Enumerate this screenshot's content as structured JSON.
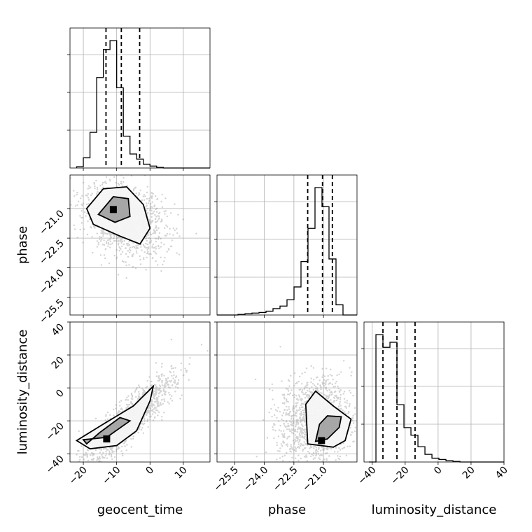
{
  "chart_data": {
    "type": "corner",
    "grid": true,
    "parameters": [
      {
        "name": "geocent_time",
        "range": [
          -24,
          18
        ],
        "ticks": [
          -20,
          -10,
          0,
          10
        ],
        "tick_labels": [
          "−20",
          "−10",
          "0",
          "10"
        ],
        "quantiles": [
          -13.2,
          -8.6,
          -3.1
        ],
        "hist_bin_start": -22,
        "hist_bin_width": 2,
        "hist_counts": [
          0.01,
          0.08,
          0.28,
          0.71,
          0.93,
          1.0,
          0.63,
          0.25,
          0.11,
          0.07,
          0.03,
          0.015,
          0.005,
          0.0,
          0.0,
          0.0,
          0.0,
          0.0,
          0.0,
          0.0
        ]
      },
      {
        "name": "phase",
        "range": [
          -26.4,
          -19.3
        ],
        "ticks": [
          -25.5,
          -24.0,
          -22.5,
          -21.0
        ],
        "tick_labels": [
          "−25.5",
          "−24.0",
          "−22.5",
          "−21.0"
        ],
        "quantiles": [
          -21.8,
          -21.05,
          -20.55
        ],
        "hist_bin_start": -26.4,
        "hist_bin_width": 0.355,
        "hist_counts": [
          0.0,
          0.0,
          0.0,
          0.005,
          0.01,
          0.015,
          0.02,
          0.03,
          0.05,
          0.07,
          0.12,
          0.22,
          0.42,
          0.68,
          1.0,
          0.85,
          0.44,
          0.08,
          0.0,
          0.0
        ]
      },
      {
        "name": "luminosity_distance",
        "range": [
          -45,
          40
        ],
        "ticks": [
          -40,
          -20,
          0,
          20,
          40
        ],
        "tick_labels": [
          "−40",
          "−20",
          "0",
          "20",
          "40"
        ],
        "quantiles": [
          -33.5,
          -25.0,
          -14.0
        ],
        "hist_bin_start": -42,
        "hist_bin_width": 4.25,
        "hist_counts": [
          0.0,
          1.0,
          0.9,
          0.94,
          0.45,
          0.27,
          0.21,
          0.12,
          0.06,
          0.03,
          0.02,
          0.01,
          0.005,
          0.0,
          0.0,
          0.0,
          0.0,
          0.0,
          0.0,
          0.0
        ]
      }
    ],
    "samples_2d": [
      {
        "x_param": "geocent_time",
        "y_param": "phase",
        "mean": [
          -7.5,
          -21.6
        ],
        "std": [
          6.0,
          0.9
        ],
        "correlation": -0.3,
        "density_peak": [
          -11,
          -21.05
        ],
        "level_1_contour": [
          [
            -15.5,
            -21.3
          ],
          [
            -11,
            -20.4
          ],
          [
            -6.5,
            -20.5
          ],
          [
            -6,
            -21.4
          ],
          [
            -10.5,
            -21.7
          ],
          [
            -15.5,
            -21.3
          ]
        ],
        "level_2_contour": [
          [
            -19,
            -21.0
          ],
          [
            -14,
            -20.0
          ],
          [
            -7,
            -19.9
          ],
          [
            -2,
            -20.8
          ],
          [
            0,
            -22.0
          ],
          [
            -3,
            -22.8
          ],
          [
            -9,
            -22.4
          ],
          [
            -17,
            -21.8
          ],
          [
            -19,
            -21.0
          ]
        ]
      },
      {
        "x_param": "geocent_time",
        "y_param": "luminosity_distance",
        "mean": [
          -6.0,
          -19.0
        ],
        "std": [
          6.5,
          13.0
        ],
        "correlation": 0.88,
        "density_peak": [
          -13,
          -31
        ],
        "level_1_contour": [
          [
            -20,
            -31.5
          ],
          [
            -13,
            -30
          ],
          [
            -6,
            -20
          ],
          [
            -9,
            -18
          ],
          [
            -15,
            -27
          ],
          [
            -19,
            -34
          ],
          [
            -20,
            -31.5
          ]
        ],
        "level_2_contour": [
          [
            -22,
            -32
          ],
          [
            -14,
            -22
          ],
          [
            -5,
            -11
          ],
          [
            1,
            1
          ],
          [
            0,
            -8
          ],
          [
            -4,
            -26
          ],
          [
            -10,
            -35
          ],
          [
            -18,
            -37
          ],
          [
            -22,
            -32
          ]
        ]
      },
      {
        "x_param": "phase",
        "y_param": "luminosity_distance",
        "mean": [
          -21.4,
          -20.0
        ],
        "std": [
          0.9,
          13.0
        ],
        "correlation": 0.05,
        "density_peak": [
          -21.1,
          -32
        ],
        "level_1_contour": [
          [
            -21.4,
            -32.5
          ],
          [
            -21.2,
            -22
          ],
          [
            -20.8,
            -17
          ],
          [
            -20.1,
            -17.5
          ],
          [
            -20.2,
            -24
          ],
          [
            -20.8,
            -31
          ],
          [
            -21.4,
            -32.5
          ]
        ],
        "level_2_contour": [
          [
            -21.9,
            -10
          ],
          [
            -21.4,
            -2
          ],
          [
            -20.5,
            -11
          ],
          [
            -19.6,
            -19
          ],
          [
            -19.9,
            -32
          ],
          [
            -20.5,
            -36
          ],
          [
            -21.8,
            -34
          ],
          [
            -21.9,
            -10
          ]
        ]
      }
    ]
  }
}
